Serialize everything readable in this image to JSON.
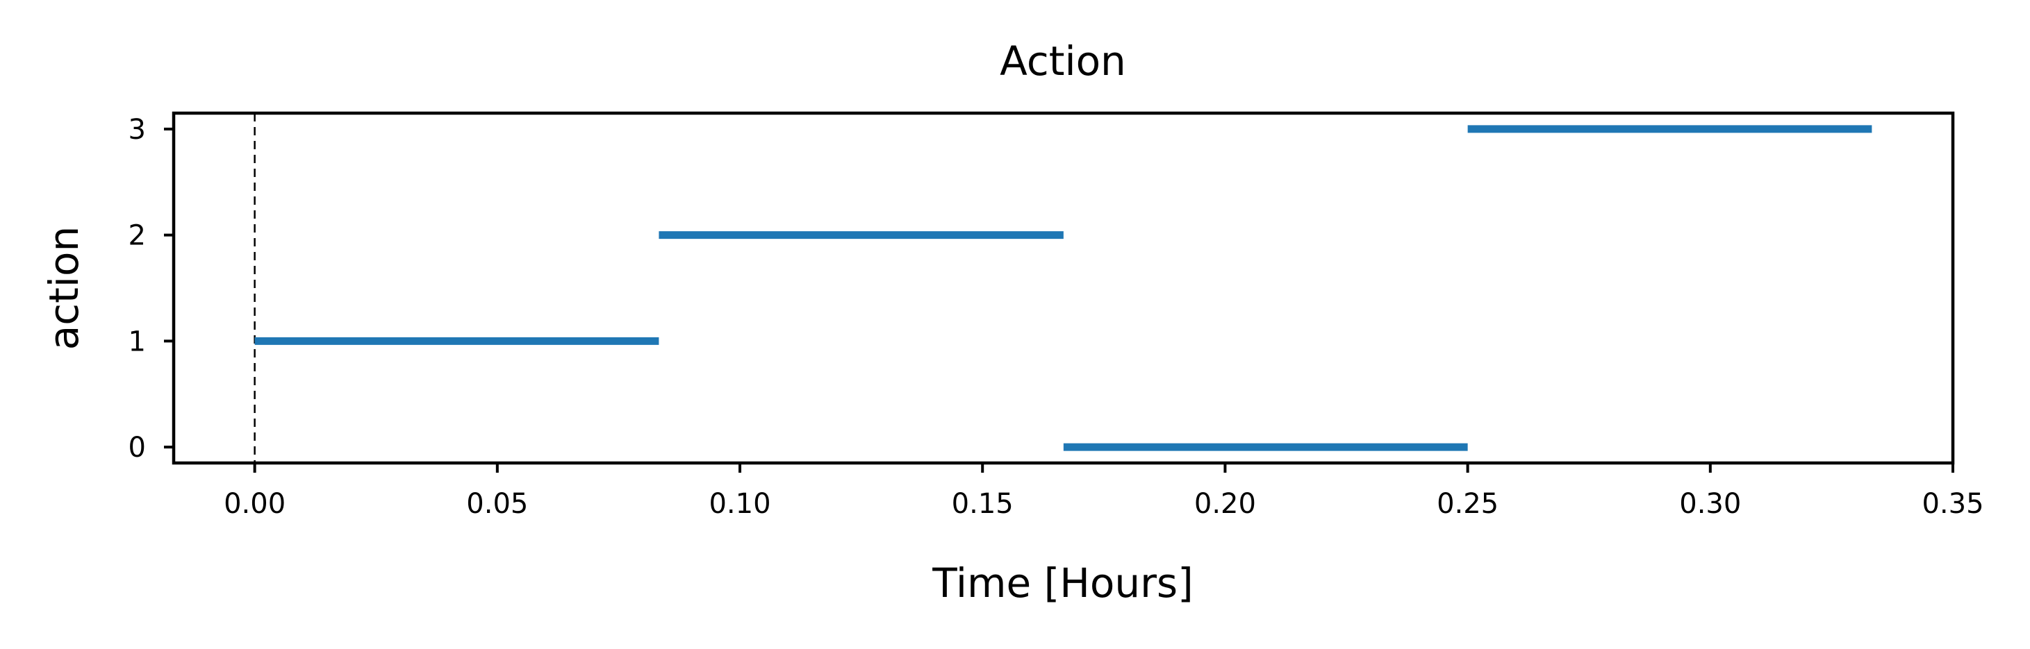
{
  "chart_data": {
    "type": "line",
    "title": "Action",
    "xlabel": "Time [Hours]",
    "ylabel": "action",
    "xlim": [
      -0.0167,
      0.35
    ],
    "ylim": [
      -0.15,
      3.15
    ],
    "xticks": [
      0.0,
      0.05,
      0.1,
      0.15,
      0.2,
      0.25,
      0.3,
      0.35
    ],
    "xtick_labels": [
      "0.00",
      "0.05",
      "0.10",
      "0.15",
      "0.20",
      "0.25",
      "0.30",
      "0.35"
    ],
    "yticks": [
      0,
      1,
      2,
      3
    ],
    "ytick_labels": [
      "0",
      "1",
      "2",
      "3"
    ],
    "grid": false,
    "series": [
      {
        "color": "#1f77b4",
        "segments": [
          {
            "x": [
              0.0,
              0.0833
            ],
            "y": 1
          },
          {
            "x": [
              0.0833,
              0.1667
            ],
            "y": 2
          },
          {
            "x": [
              0.1667,
              0.25
            ],
            "y": 0
          },
          {
            "x": [
              0.25,
              0.3333
            ],
            "y": 3
          }
        ]
      }
    ],
    "vertical_lines": [
      {
        "x": 0.0,
        "style": "dashed",
        "color": "#000000"
      }
    ]
  }
}
